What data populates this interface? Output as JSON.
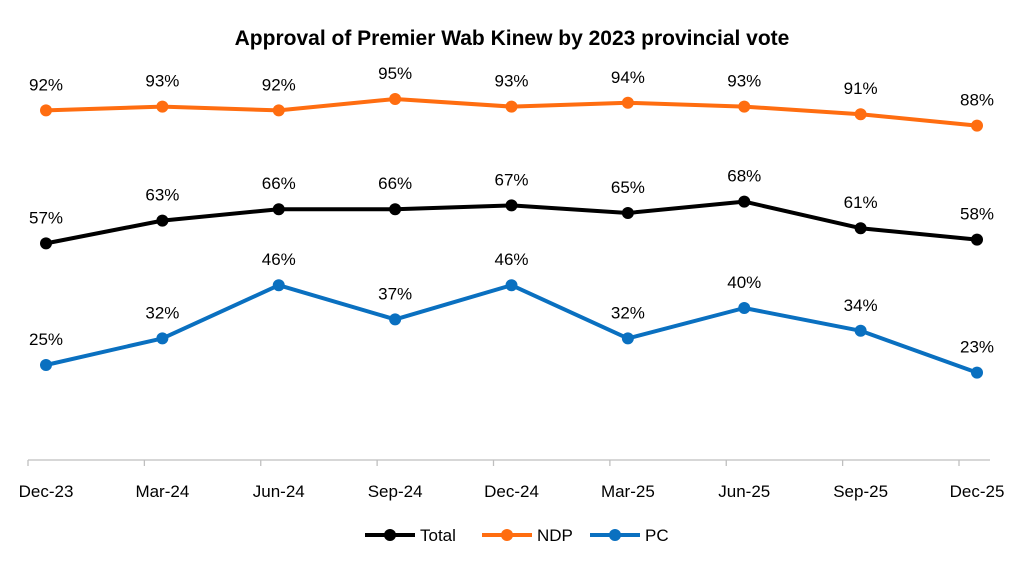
{
  "chart_data": {
    "type": "line",
    "title": "Approval of Premier Wab Kinew by 2023 provincial vote",
    "xlabel": "",
    "ylabel": "",
    "ylim": [
      0,
      100
    ],
    "grid": false,
    "legend_position": "bottom",
    "categories": [
      "Dec-23",
      "Mar-24",
      "Jun-24",
      "Sep-24",
      "Dec-24",
      "Mar-25",
      "Jun-25",
      "Sep-25",
      "Dec-25"
    ],
    "series": [
      {
        "name": "Total",
        "color": "#000000",
        "values": [
          57,
          63,
          66,
          66,
          67,
          65,
          68,
          61,
          58
        ]
      },
      {
        "name": "NDP",
        "color": "#ff6d10",
        "values": [
          92,
          93,
          92,
          95,
          93,
          94,
          93,
          91,
          88
        ]
      },
      {
        "name": "PC",
        "color": "#0a70c0",
        "values": [
          25,
          32,
          46,
          37,
          46,
          32,
          40,
          34,
          23
        ]
      }
    ],
    "value_suffix": "%"
  }
}
